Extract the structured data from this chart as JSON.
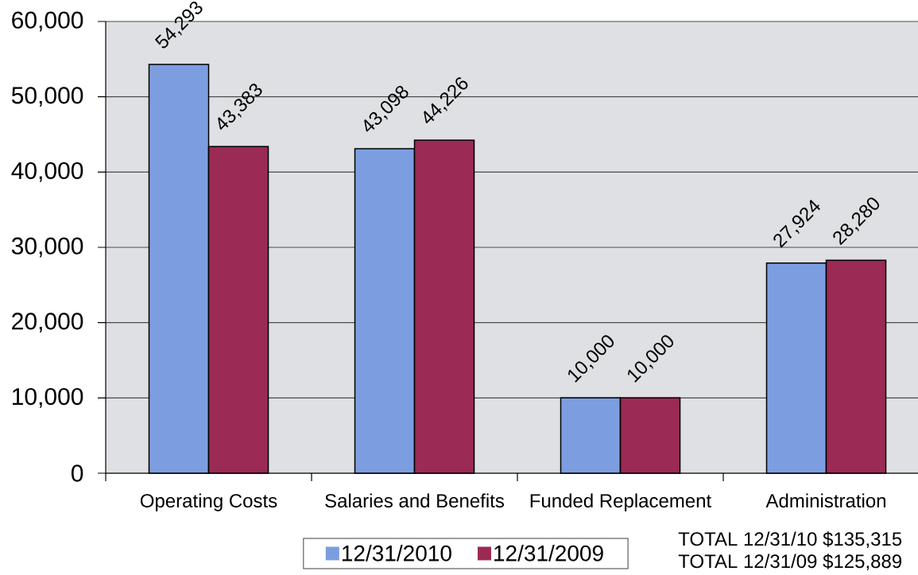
{
  "chart_data": {
    "type": "bar",
    "categories": [
      "Operating Costs",
      "Salaries and Benefits",
      "Funded Replacement",
      "Administration"
    ],
    "series": [
      {
        "name": "12/31/2010",
        "color": "#7c9ee0",
        "values": [
          54293,
          43098,
          10000,
          27924
        ],
        "value_labels": [
          "54,293",
          "43,098",
          "10,000",
          "27,924"
        ]
      },
      {
        "name": "12/31/2009",
        "color": "#9b2a55",
        "values": [
          43383,
          44226,
          10000,
          28280
        ],
        "value_labels": [
          "43,383",
          "44,226",
          "10,000",
          "28,280"
        ]
      }
    ],
    "ylim": [
      0,
      60000
    ],
    "yticks": [
      0,
      {
        "value": 10000,
        "label": "10,000"
      },
      {
        "value": 20000,
        "label": "20,000"
      },
      {
        "value": 30000,
        "label": "30,000"
      },
      {
        "value": 40000,
        "label": "40,000"
      },
      {
        "value": 50000,
        "label": "50,000"
      },
      {
        "value": 60000,
        "label": "60,000"
      }
    ],
    "grid": "y",
    "legend": "bottom",
    "annotations": [
      "TOTAL 12/31/10 $135,315",
      "TOTAL 12/31/09 $125,889"
    ]
  }
}
